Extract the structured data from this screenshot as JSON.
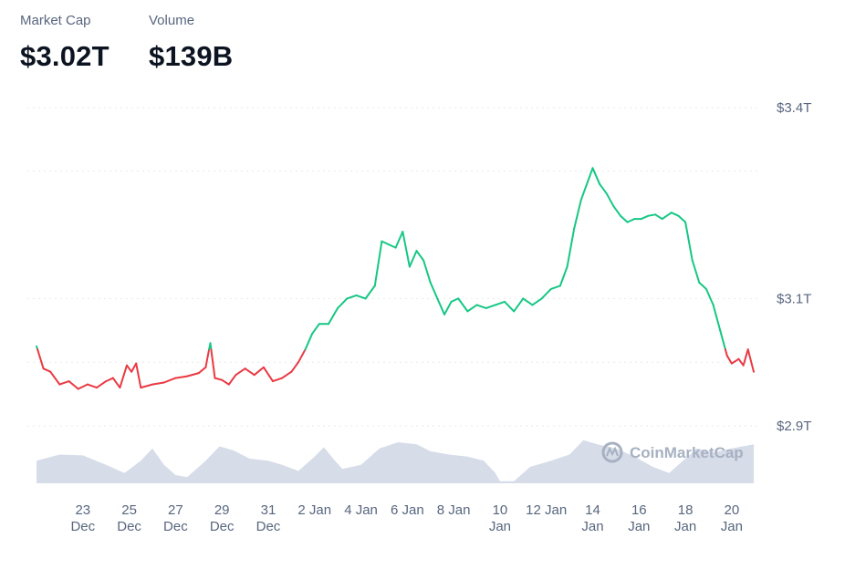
{
  "header": {
    "market_cap_label": "Market Cap",
    "market_cap_value": "$3.02T",
    "volume_label": "Volume",
    "volume_value": "$139B"
  },
  "watermark": {
    "text": "CoinMarketCap",
    "icon": "coinmarketcap-logo-icon"
  },
  "colors": {
    "up": "#16c784",
    "down": "#ea3943",
    "volume": "#cfd6e4",
    "grid": "#e6e9ee",
    "text": "#58667e"
  },
  "chart_data": {
    "type": "line",
    "x_ticks": [
      {
        "day": 23,
        "lines": [
          "23",
          "Dec"
        ]
      },
      {
        "day": 25,
        "lines": [
          "25",
          "Dec"
        ]
      },
      {
        "day": 27,
        "lines": [
          "27",
          "Dec"
        ]
      },
      {
        "day": 29,
        "lines": [
          "29",
          "Dec"
        ]
      },
      {
        "day": 31,
        "lines": [
          "31",
          "Dec"
        ]
      },
      {
        "day": 33,
        "lines": [
          "2 Jan"
        ]
      },
      {
        "day": 35,
        "lines": [
          "4 Jan"
        ]
      },
      {
        "day": 37,
        "lines": [
          "6 Jan"
        ]
      },
      {
        "day": 39,
        "lines": [
          "8 Jan"
        ]
      },
      {
        "day": 41,
        "lines": [
          "10",
          "Jan"
        ]
      },
      {
        "day": 43,
        "lines": [
          "12 Jan"
        ]
      },
      {
        "day": 45,
        "lines": [
          "14",
          "Jan"
        ]
      },
      {
        "day": 47,
        "lines": [
          "16",
          "Jan"
        ]
      },
      {
        "day": 49,
        "lines": [
          "18",
          "Jan"
        ]
      },
      {
        "day": 51,
        "lines": [
          "20",
          "Jan"
        ]
      }
    ],
    "y_ticks": [
      {
        "value": 3.4,
        "label": "$3.4T"
      },
      {
        "value": 3.1,
        "label": "$3.1T"
      },
      {
        "value": 2.9,
        "label": "$2.9T"
      }
    ],
    "ylim": [
      2.8,
      3.4
    ],
    "baseline": 3.02,
    "grid": true,
    "series": [
      {
        "points": [
          [
            21.0,
            3.025
          ],
          [
            21.3,
            2.99
          ],
          [
            21.6,
            2.985
          ],
          [
            22.0,
            2.965
          ],
          [
            22.4,
            2.97
          ],
          [
            22.8,
            2.958
          ],
          [
            23.2,
            2.965
          ],
          [
            23.6,
            2.96
          ],
          [
            24.0,
            2.97
          ],
          [
            24.3,
            2.975
          ],
          [
            24.6,
            2.96
          ],
          [
            24.9,
            2.995
          ],
          [
            25.1,
            2.985
          ],
          [
            25.3,
            2.998
          ],
          [
            25.5,
            2.96
          ],
          [
            26.0,
            2.965
          ],
          [
            26.5,
            2.968
          ],
          [
            27.0,
            2.975
          ],
          [
            27.5,
            2.978
          ],
          [
            28.0,
            2.983
          ],
          [
            28.3,
            2.992
          ],
          [
            28.5,
            3.03
          ],
          [
            28.7,
            2.975
          ],
          [
            29.0,
            2.972
          ],
          [
            29.3,
            2.965
          ],
          [
            29.6,
            2.98
          ],
          [
            30.0,
            2.99
          ],
          [
            30.4,
            2.98
          ],
          [
            30.8,
            2.992
          ],
          [
            31.2,
            2.97
          ],
          [
            31.6,
            2.975
          ],
          [
            32.0,
            2.985
          ],
          [
            32.3,
            3.0
          ],
          [
            32.6,
            3.02
          ],
          [
            32.9,
            3.045
          ],
          [
            33.2,
            3.06
          ],
          [
            33.6,
            3.06
          ],
          [
            34.0,
            3.085
          ],
          [
            34.4,
            3.1
          ],
          [
            34.8,
            3.105
          ],
          [
            35.2,
            3.1
          ],
          [
            35.6,
            3.12
          ],
          [
            35.9,
            3.19
          ],
          [
            36.2,
            3.185
          ],
          [
            36.5,
            3.18
          ],
          [
            36.8,
            3.205
          ],
          [
            37.1,
            3.15
          ],
          [
            37.4,
            3.175
          ],
          [
            37.7,
            3.16
          ],
          [
            38.0,
            3.125
          ],
          [
            38.3,
            3.1
          ],
          [
            38.6,
            3.075
          ],
          [
            38.9,
            3.095
          ],
          [
            39.2,
            3.1
          ],
          [
            39.6,
            3.08
          ],
          [
            40.0,
            3.09
          ],
          [
            40.4,
            3.085
          ],
          [
            40.8,
            3.09
          ],
          [
            41.2,
            3.095
          ],
          [
            41.6,
            3.08
          ],
          [
            42.0,
            3.1
          ],
          [
            42.4,
            3.09
          ],
          [
            42.8,
            3.1
          ],
          [
            43.2,
            3.115
          ],
          [
            43.6,
            3.12
          ],
          [
            43.9,
            3.15
          ],
          [
            44.2,
            3.21
          ],
          [
            44.5,
            3.255
          ],
          [
            44.8,
            3.285
          ],
          [
            45.0,
            3.305
          ],
          [
            45.3,
            3.28
          ],
          [
            45.6,
            3.265
          ],
          [
            45.9,
            3.245
          ],
          [
            46.2,
            3.23
          ],
          [
            46.5,
            3.22
          ],
          [
            46.8,
            3.225
          ],
          [
            47.1,
            3.225
          ],
          [
            47.4,
            3.23
          ],
          [
            47.7,
            3.232
          ],
          [
            48.0,
            3.225
          ],
          [
            48.4,
            3.235
          ],
          [
            48.7,
            3.23
          ],
          [
            49.0,
            3.22
          ],
          [
            49.3,
            3.16
          ],
          [
            49.6,
            3.125
          ],
          [
            49.9,
            3.115
          ],
          [
            50.2,
            3.09
          ],
          [
            50.5,
            3.05
          ],
          [
            50.8,
            3.01
          ],
          [
            51.0,
            2.998
          ],
          [
            51.3,
            3.005
          ],
          [
            51.5,
            2.995
          ],
          [
            51.7,
            3.02
          ],
          [
            51.95,
            2.985
          ]
        ]
      }
    ],
    "volume": {
      "points": [
        [
          21.0,
          0.55
        ],
        [
          22.0,
          0.7
        ],
        [
          23.0,
          0.68
        ],
        [
          24.0,
          0.45
        ],
        [
          24.8,
          0.25
        ],
        [
          25.5,
          0.55
        ],
        [
          26.0,
          0.85
        ],
        [
          26.5,
          0.45
        ],
        [
          27.0,
          0.2
        ],
        [
          27.5,
          0.15
        ],
        [
          28.3,
          0.55
        ],
        [
          28.9,
          0.9
        ],
        [
          29.5,
          0.8
        ],
        [
          30.2,
          0.6
        ],
        [
          31.0,
          0.55
        ],
        [
          31.6,
          0.45
        ],
        [
          32.3,
          0.3
        ],
        [
          33.0,
          0.65
        ],
        [
          33.4,
          0.88
        ],
        [
          33.8,
          0.6
        ],
        [
          34.2,
          0.35
        ],
        [
          35.0,
          0.45
        ],
        [
          35.8,
          0.85
        ],
        [
          36.6,
          1.0
        ],
        [
          37.4,
          0.95
        ],
        [
          38.0,
          0.78
        ],
        [
          38.8,
          0.7
        ],
        [
          39.6,
          0.65
        ],
        [
          40.3,
          0.55
        ],
        [
          40.8,
          0.25
        ],
        [
          41.0,
          0.05
        ],
        [
          41.6,
          0.05
        ],
        [
          42.3,
          0.4
        ],
        [
          43.2,
          0.55
        ],
        [
          44.0,
          0.7
        ],
        [
          44.6,
          1.05
        ],
        [
          45.2,
          0.95
        ],
        [
          46.0,
          0.85
        ],
        [
          46.8,
          0.65
        ],
        [
          47.6,
          0.4
        ],
        [
          48.3,
          0.25
        ],
        [
          48.9,
          0.55
        ],
        [
          49.5,
          0.85
        ],
        [
          50.2,
          0.75
        ],
        [
          51.0,
          0.85
        ],
        [
          51.95,
          0.95
        ]
      ]
    }
  }
}
